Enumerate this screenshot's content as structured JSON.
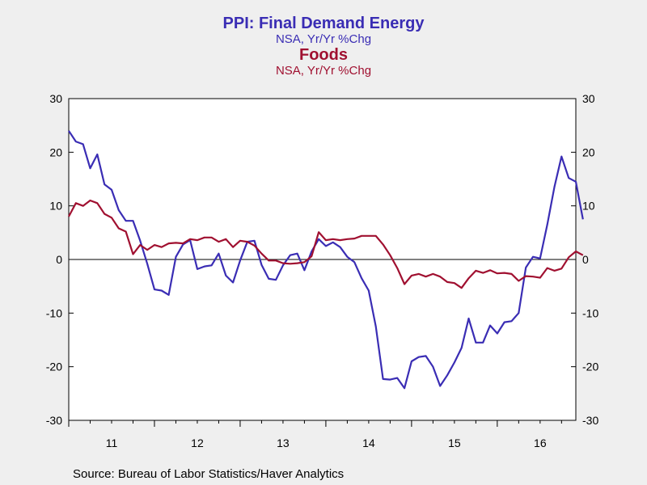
{
  "titles": {
    "series1_title": "PPI: Final Demand Energy",
    "series1_subtitle": "NSA, Yr/Yr %Chg",
    "series2_title": "Foods",
    "series2_subtitle": "NSA, Yr/Yr %Chg"
  },
  "source": "Source:  Bureau of Labor Statistics/Haver Analytics",
  "colors": {
    "energy": "#3a2db4",
    "foods": "#a01030",
    "background": "#efefef",
    "plot_background": "#ffffff"
  },
  "chart_data": {
    "type": "line",
    "title": "PPI: Final Demand Energy / Foods",
    "ylim": [
      -30,
      30
    ],
    "yticks": [
      30,
      20,
      10,
      0,
      -10,
      -20,
      -30
    ],
    "x_start_year": 2011,
    "x_end_year": 2016.9167,
    "x_tick_labels": [
      "11",
      "12",
      "13",
      "14",
      "15",
      "16"
    ],
    "zero_line": true,
    "grid": false,
    "series": [
      {
        "name": "Energy",
        "axis": "left",
        "values": [
          24,
          22,
          21.5,
          17,
          19.6,
          14,
          13,
          9.2,
          7.2,
          7.2,
          3.5,
          -0.8,
          -5.6,
          -5.8,
          -6.6,
          0.5,
          2.8,
          3.6,
          -1.8,
          -1.3,
          -1.1,
          1.1,
          -3,
          -4.3,
          -0.2,
          3.3,
          3.5,
          -1,
          -3.6,
          -3.8,
          -1.1,
          0.8,
          1.1,
          -2,
          1.5,
          3.8,
          2.5,
          3.2,
          2.3,
          0.5,
          -0.5,
          -3.5,
          -5.8,
          -12.5,
          -22.3,
          -22.4,
          -22.1,
          -24,
          -19,
          -18.2,
          -18,
          -20,
          -23.6,
          -21.6,
          -19.2,
          -16.5,
          -11,
          -15.5,
          -15.5,
          -12.3,
          -13.8,
          -11.7,
          -11.5,
          -10,
          -1.5,
          0.5,
          0.2,
          6.5,
          13.5,
          19.2,
          15.2,
          14.5,
          7.5
        ]
      },
      {
        "name": "Foods",
        "axis": "right",
        "values": [
          8,
          10.5,
          10,
          11,
          10.5,
          8.5,
          7.8,
          5.8,
          5.2,
          1,
          2.7,
          1.8,
          2.7,
          2.3,
          3,
          3.1,
          3,
          3.8,
          3.6,
          4.1,
          4.1,
          3.3,
          3.8,
          2.3,
          3.5,
          3.3,
          2.6,
          1.1,
          -0.2,
          -0.2,
          -0.7,
          -0.8,
          -0.7,
          -0.5,
          0.6,
          5.1,
          3.6,
          3.8,
          3.6,
          3.8,
          3.9,
          4.4,
          4.4,
          4.4,
          2.8,
          0.8,
          -1.6,
          -4.6,
          -3,
          -2.7,
          -3.2,
          -2.7,
          -3.2,
          -4.2,
          -4.4,
          -5.3,
          -3.5,
          -2.1,
          -2.5,
          -2,
          -2.6,
          -2.5,
          -2.7,
          -4,
          -3.1,
          -3.2,
          -3.4,
          -1.6,
          -2.1,
          -1.7,
          0.4,
          1.5,
          0.8
        ]
      }
    ]
  }
}
